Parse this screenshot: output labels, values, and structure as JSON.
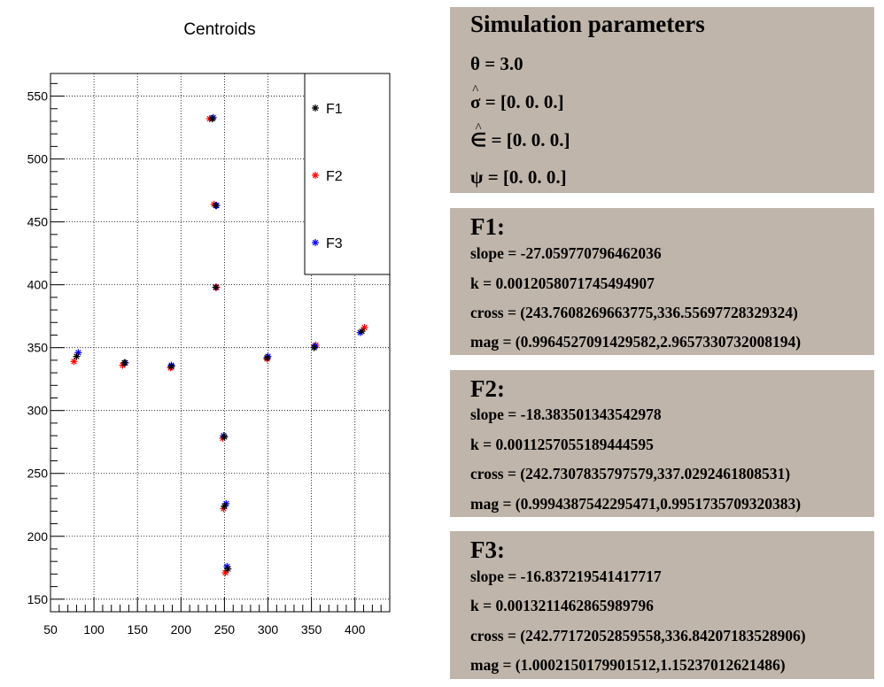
{
  "chart_data": {
    "type": "scatter",
    "title": "Centroids",
    "xlim": [
      50,
      440
    ],
    "ylim": [
      140,
      568
    ],
    "x_ticks": [
      50,
      100,
      150,
      200,
      250,
      300,
      350,
      400
    ],
    "y_ticks": [
      150,
      200,
      250,
      300,
      350,
      400,
      450,
      500,
      550
    ],
    "grid": true,
    "legend_position": "top-right",
    "series": [
      {
        "name": "F1",
        "color": "#000000",
        "points": [
          [
            80,
            343
          ],
          [
            135,
            338
          ],
          [
            189,
            335
          ],
          [
            299,
            342
          ],
          [
            353,
            350
          ],
          [
            408,
            363
          ],
          [
            236,
            532
          ],
          [
            240,
            463
          ],
          [
            240,
            398
          ],
          [
            250,
            279
          ],
          [
            250,
            224
          ],
          [
            254,
            174
          ]
        ]
      },
      {
        "name": "F2",
        "color": "#ff0000",
        "points": [
          [
            77,
            339
          ],
          [
            133,
            336
          ],
          [
            188,
            334
          ],
          [
            299,
            341
          ],
          [
            355,
            352
          ],
          [
            411,
            366
          ],
          [
            233,
            532
          ],
          [
            238,
            464
          ],
          [
            241,
            398
          ],
          [
            248,
            278
          ],
          [
            249,
            222
          ],
          [
            251,
            171
          ]
        ]
      },
      {
        "name": "F3",
        "color": "#0000ff",
        "points": [
          [
            82,
            346
          ],
          [
            136,
            338
          ],
          [
            189,
            336
          ],
          [
            300,
            343
          ],
          [
            354,
            351
          ],
          [
            406,
            362
          ],
          [
            237,
            533
          ],
          [
            241,
            463
          ],
          [
            240,
            398
          ],
          [
            249,
            280
          ],
          [
            252,
            226
          ],
          [
            253,
            176
          ]
        ]
      }
    ]
  },
  "params": {
    "title": "Simulation parameters",
    "theta": "θ = 3.0",
    "sigma_sym": "σ",
    "sigma_val": " = [0. 0. 0.]",
    "eps_sym": "∈",
    "eps_val": " = [0. 0. 0.]",
    "psi": "ψ = [0. 0. 0.]"
  },
  "fits": [
    {
      "title": "F1:",
      "slope": "slope = -27.059770796462036",
      "k": "k = 0.0012058071745494907",
      "cross": "cross = (243.7608269663775,336.55697728329324)",
      "mag": "mag = (0.9964527091429582,2.9657330732008194)"
    },
    {
      "title": "F2:",
      "slope": "slope = -18.383501343542978",
      "k": "k = 0.0011257055189444595",
      "cross": "cross = (242.7307835797579,337.0292461808531)",
      "mag": "mag = (0.9994387542295471,0.9951735709320383)"
    },
    {
      "title": "F3:",
      "slope": "slope = -16.837219541417717",
      "k": "k = 0.0013211462865989796",
      "cross": "cross = (242.77172052859558,336.84207183528906)",
      "mag": "mag = (1.0002150179901512,1.15237012621486)"
    }
  ]
}
